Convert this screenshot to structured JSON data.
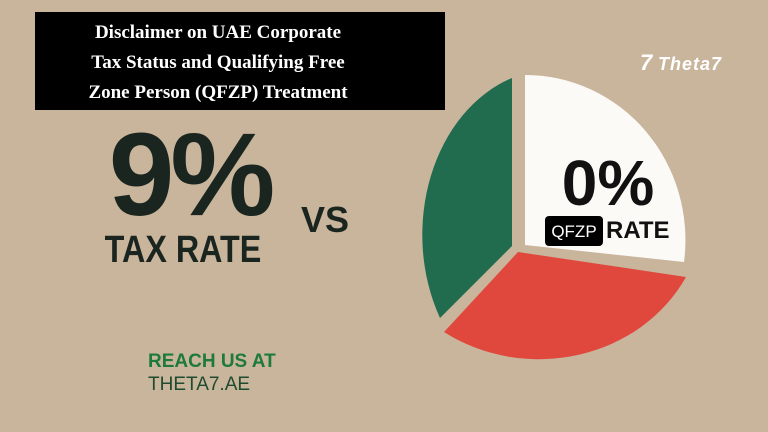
{
  "header": {
    "title_lines": [
      "Disclaimer on UAE Corporate",
      "Tax Status and Qualifying Free",
      "Zone Person (QFZP) Treatment"
    ]
  },
  "logo": {
    "mark": "7",
    "text": "Theta7"
  },
  "left": {
    "rate": "9%",
    "label": "TAX RATE"
  },
  "versus": "VS",
  "right": {
    "rate": "0%",
    "badge": "QFZP",
    "label": "RATE"
  },
  "contact": {
    "prompt": "REACH US AT",
    "site": "THETA7.AE"
  }
}
